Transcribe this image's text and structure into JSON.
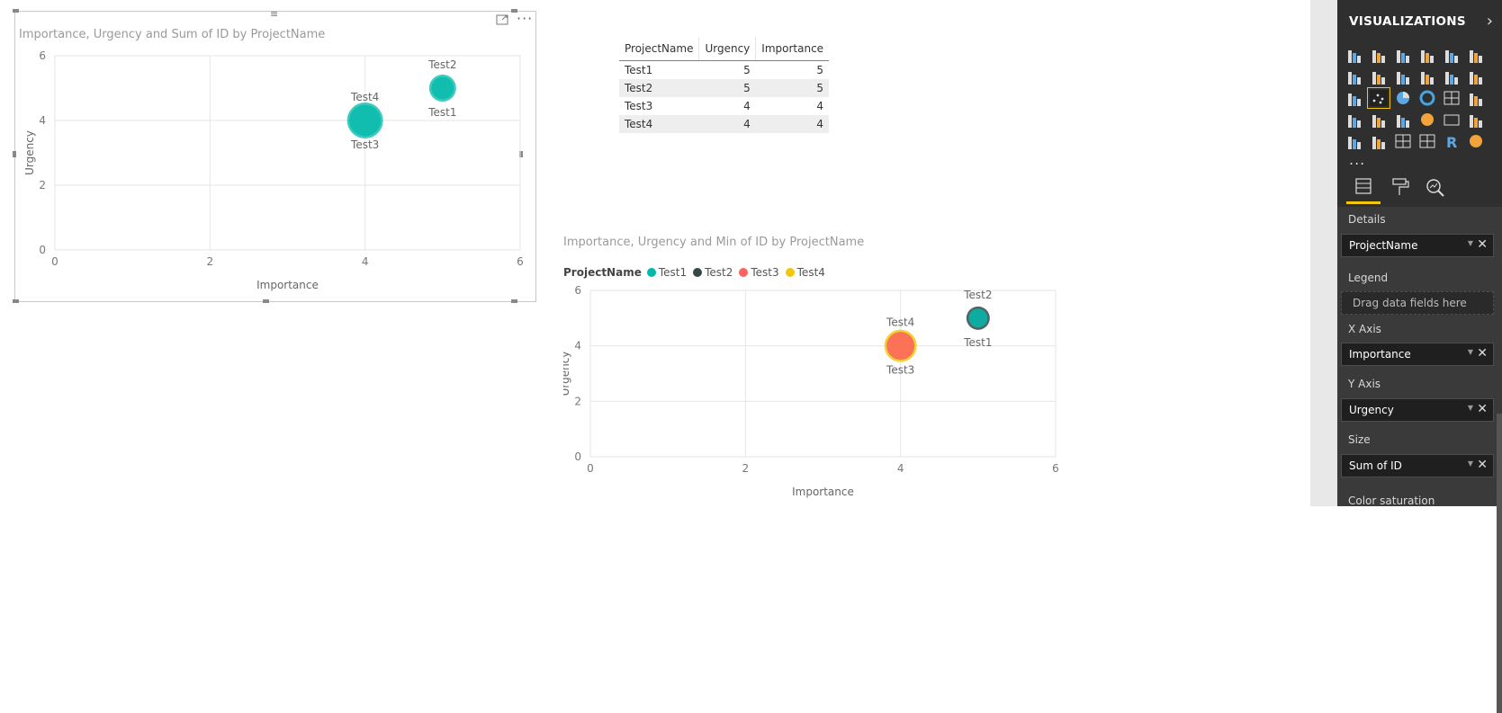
{
  "visual1": {
    "title": "Importance, Urgency and Sum of ID by ProjectName",
    "x_label": "Importance",
    "y_label": "Urgency"
  },
  "table": {
    "headers": [
      "ProjectName",
      "Urgency",
      "Importance"
    ],
    "rows": [
      [
        "Test1",
        "5",
        "5"
      ],
      [
        "Test2",
        "5",
        "5"
      ],
      [
        "Test3",
        "4",
        "4"
      ],
      [
        "Test4",
        "4",
        "4"
      ]
    ]
  },
  "visual2": {
    "title": "Importance, Urgency and Min of ID by ProjectName",
    "legend_title": "ProjectName",
    "legend_items": [
      {
        "label": "Test1",
        "color": "#01b8aa"
      },
      {
        "label": "Test2",
        "color": "#374649"
      },
      {
        "label": "Test3",
        "color": "#fd625e"
      },
      {
        "label": "Test4",
        "color": "#f2c80f"
      }
    ],
    "x_label": "Importance",
    "y_label": "Urgency"
  },
  "chart_data": [
    {
      "type": "scatter",
      "title": "Importance, Urgency and Sum of ID by ProjectName",
      "xlabel": "Importance",
      "ylabel": "Urgency",
      "xlim": [
        0,
        6
      ],
      "ylim": [
        0,
        6
      ],
      "xticks": [
        "0",
        "2",
        "4",
        "6"
      ],
      "yticks": [
        "0",
        "2",
        "4",
        "6"
      ],
      "grid": true,
      "points": [
        {
          "label": "Test1",
          "x": 5,
          "y": 5,
          "size": 1,
          "color": "#01b8aa",
          "label_pos": "below"
        },
        {
          "label": "Test2",
          "x": 5,
          "y": 5,
          "size": 2,
          "color": "#01b8aa",
          "label_pos": "above"
        },
        {
          "label": "Test3",
          "x": 4,
          "y": 4,
          "size": 3,
          "color": "#01b8aa",
          "label_pos": "below"
        },
        {
          "label": "Test4",
          "x": 4,
          "y": 4,
          "size": 4,
          "color": "#01b8aa",
          "label_pos": "above"
        }
      ]
    },
    {
      "type": "scatter",
      "title": "Importance, Urgency and Min of ID by ProjectName",
      "xlabel": "Importance",
      "ylabel": "Urgency",
      "xlim": [
        0,
        6
      ],
      "ylim": [
        0,
        6
      ],
      "xticks": [
        "0",
        "2",
        "4",
        "6"
      ],
      "yticks": [
        "0",
        "2",
        "4",
        "6"
      ],
      "grid": true,
      "legend": "top-left",
      "points": [
        {
          "label": "Test1",
          "x": 5,
          "y": 5,
          "size": 1,
          "color": "#01b8aa",
          "label_pos": "below"
        },
        {
          "label": "Test2",
          "x": 5,
          "y": 5,
          "size": 2,
          "color": "#374649",
          "label_pos": "above"
        },
        {
          "label": "Test3",
          "x": 4,
          "y": 4,
          "size": 3,
          "color": "#fd625e",
          "label_pos": "below"
        },
        {
          "label": "Test4",
          "x": 4,
          "y": 4,
          "size": 4,
          "color": "#f2c80f",
          "label_pos": "above"
        }
      ]
    }
  ],
  "panel": {
    "title": "VISUALIZATIONS",
    "collapse_icon": "chevron-right-icon",
    "more_label": "...",
    "wells": [
      {
        "label": "Details",
        "field": "ProjectName"
      },
      {
        "label": "Legend",
        "hint": "Drag data fields here"
      },
      {
        "label": "X Axis",
        "field": "Importance"
      },
      {
        "label": "Y Axis",
        "field": "Urgency"
      },
      {
        "label": "Size",
        "field": "Sum of ID"
      },
      {
        "label": "Color saturation"
      }
    ]
  }
}
